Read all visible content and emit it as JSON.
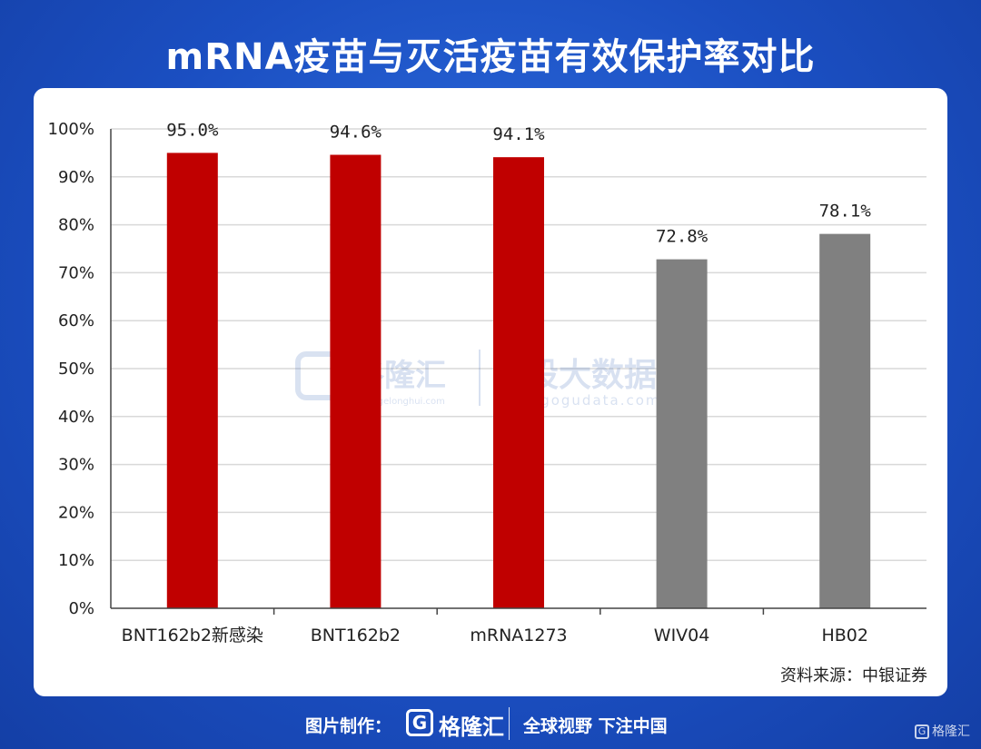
{
  "page": {
    "title": "mRNA疫苗与灭活疫苗有效保护率对比",
    "source": "资料来源：中银证券"
  },
  "watermark": {
    "brand": "格隆汇",
    "brand_url": "www.gelonghui.com",
    "data_brand": "勾股大数据",
    "data_url": "www.gogudata.com"
  },
  "footer": {
    "made_by": "图片制作：",
    "logo_letter": "G",
    "logo_name": "格隆汇",
    "slogan": "全球视野 下注中国",
    "corner_mark": "格隆汇"
  },
  "colors": {
    "mrna": "#c00000",
    "inactivated": "#808080",
    "grid": "#d9d9d9",
    "axis": "#444444"
  },
  "chart_data": {
    "type": "bar",
    "categories": [
      "BNT162b2新感染",
      "BNT162b2",
      "mRNA1273",
      "WIV04",
      "HB02"
    ],
    "values": [
      95.0,
      94.6,
      94.1,
      72.8,
      78.1
    ],
    "data_labels": [
      "95.0%",
      "94.6%",
      "94.1%",
      "72.8%",
      "78.1%"
    ],
    "bar_groups": [
      "mrna",
      "mrna",
      "mrna",
      "inactivated",
      "inactivated"
    ],
    "y_ticks": [
      "0%",
      "10%",
      "20%",
      "30%",
      "40%",
      "50%",
      "60%",
      "70%",
      "80%",
      "90%",
      "100%"
    ],
    "ylim": [
      0,
      100
    ],
    "grid": true,
    "legend": "none"
  }
}
